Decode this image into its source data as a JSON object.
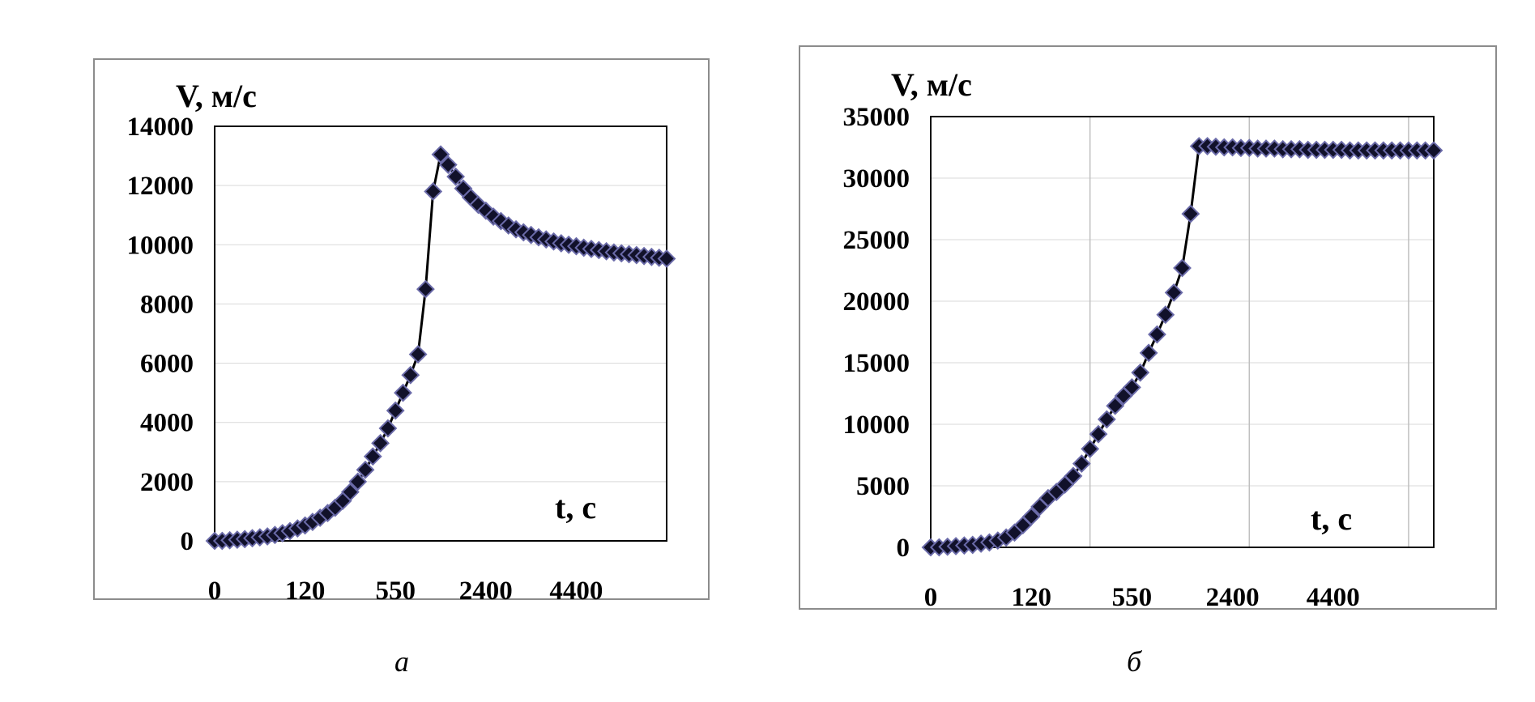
{
  "chart_data": [
    {
      "type": "line",
      "panel_label": "а",
      "ylabel": "V, м/с",
      "xlabel": "t, с",
      "yticks": [
        "0",
        "2000",
        "4000",
        "6000",
        "8000",
        "10000",
        "12000",
        "14000"
      ],
      "ylim": [
        0,
        14000
      ],
      "xticks": [
        "0",
        "120",
        "550",
        "2400",
        "4400"
      ],
      "xtick_index": [
        0,
        12,
        24,
        36,
        48
      ],
      "x_index_max": 60,
      "grid": "horizontal",
      "marker": "diamond",
      "marker_color": "#11112a",
      "marker_edge": "#6a6aa8",
      "line_color": "#000000",
      "y": [
        0,
        0,
        20,
        40,
        60,
        90,
        120,
        150,
        200,
        260,
        330,
        420,
        520,
        640,
        780,
        940,
        1120,
        1350,
        1650,
        2000,
        2400,
        2850,
        3300,
        3800,
        4400,
        5000,
        5600,
        6300,
        8500,
        11800,
        13050,
        12700,
        12300,
        11900,
        11600,
        11350,
        11150,
        10950,
        10800,
        10650,
        10520,
        10420,
        10330,
        10250,
        10180,
        10110,
        10050,
        10000,
        9950,
        9900,
        9860,
        9820,
        9780,
        9740,
        9710,
        9680,
        9650,
        9620,
        9590,
        9560,
        9530
      ]
    },
    {
      "type": "line",
      "panel_label": "б",
      "ylabel": "V, м/с",
      "xlabel": "t, с",
      "yticks": [
        "0",
        "5000",
        "10000",
        "15000",
        "20000",
        "25000",
        "30000",
        "35000"
      ],
      "ylim": [
        0,
        35000
      ],
      "xticks": [
        "0",
        "120",
        "550",
        "2400",
        "4400"
      ],
      "xtick_index": [
        0,
        12,
        24,
        36,
        48
      ],
      "x_index_max": 60,
      "grid": "both",
      "vgrid_index": [
        19,
        38,
        57
      ],
      "marker": "diamond",
      "marker_color": "#11112a",
      "marker_edge": "#6a6aa8",
      "line_color": "#000000",
      "y": [
        0,
        0,
        50,
        100,
        150,
        200,
        300,
        400,
        550,
        800,
        1200,
        1800,
        2500,
        3300,
        4000,
        4500,
        5100,
        5800,
        6800,
        8000,
        9200,
        10400,
        11500,
        12300,
        13000,
        14200,
        15800,
        17300,
        18900,
        20700,
        22700,
        27100,
        32600,
        32600,
        32550,
        32500,
        32500,
        32450,
        32450,
        32400,
        32400,
        32400,
        32350,
        32350,
        32350,
        32300,
        32300,
        32300,
        32300,
        32300,
        32250,
        32250,
        32250,
        32250,
        32250,
        32250,
        32250,
        32250,
        32250,
        32250,
        32250
      ]
    }
  ]
}
